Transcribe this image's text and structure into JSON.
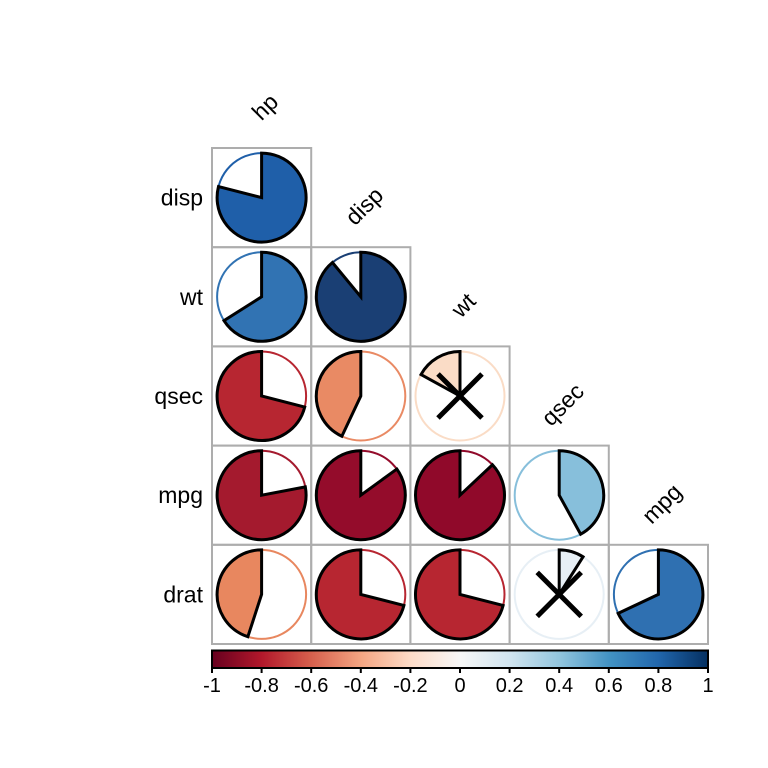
{
  "chart_data": {
    "type": "correlation-pie-matrix",
    "title": "",
    "column_labels": [
      "hp",
      "disp",
      "wt",
      "qsec",
      "mpg"
    ],
    "row_labels": [
      "disp",
      "wt",
      "qsec",
      "mpg",
      "drat"
    ],
    "note": "pies fill clockwise from 12 o'clock for positive r, counterclockwise for negative r; X marks non-significant correlations",
    "cells": [
      {
        "row": "disp",
        "col": "hp",
        "value": 0.79,
        "color": "#1F5FA9",
        "not_significant": false
      },
      {
        "row": "wt",
        "col": "hp",
        "value": 0.66,
        "color": "#3173B3",
        "not_significant": false
      },
      {
        "row": "wt",
        "col": "disp",
        "value": 0.89,
        "color": "#1A3F74",
        "not_significant": false
      },
      {
        "row": "qsec",
        "col": "hp",
        "value": -0.71,
        "color": "#B72631",
        "not_significant": false
      },
      {
        "row": "qsec",
        "col": "disp",
        "value": -0.43,
        "color": "#E98A64",
        "not_significant": false
      },
      {
        "row": "qsec",
        "col": "wt",
        "value": -0.17,
        "color": "#FADCC6",
        "not_significant": true
      },
      {
        "row": "mpg",
        "col": "hp",
        "value": -0.78,
        "color": "#A41A2E",
        "not_significant": false
      },
      {
        "row": "mpg",
        "col": "disp",
        "value": -0.85,
        "color": "#940C2B",
        "not_significant": false
      },
      {
        "row": "mpg",
        "col": "wt",
        "value": -0.87,
        "color": "#90092A",
        "not_significant": false
      },
      {
        "row": "mpg",
        "col": "qsec",
        "value": 0.42,
        "color": "#87BFDB",
        "not_significant": false
      },
      {
        "row": "drat",
        "col": "hp",
        "value": -0.45,
        "color": "#E8875F",
        "not_significant": false
      },
      {
        "row": "drat",
        "col": "disp",
        "value": -0.71,
        "color": "#B72631",
        "not_significant": false
      },
      {
        "row": "drat",
        "col": "wt",
        "value": -0.71,
        "color": "#B72631",
        "not_significant": false
      },
      {
        "row": "drat",
        "col": "qsec",
        "value": 0.09,
        "color": "#E7EFF5",
        "not_significant": true
      },
      {
        "row": "drat",
        "col": "mpg",
        "value": 0.68,
        "color": "#2F70B1",
        "not_significant": false
      }
    ],
    "colorbar": {
      "min": -1,
      "max": 1,
      "tick_labels": [
        "-1",
        "-0.8",
        "-0.6",
        "-0.4",
        "-0.2",
        "0",
        "0.2",
        "0.4",
        "0.6",
        "0.8",
        "1"
      ],
      "gradient_stops": [
        "#67001F",
        "#B2182B",
        "#D6604D",
        "#F4A582",
        "#FDDBC7",
        "#F7F7F7",
        "#D1E5F0",
        "#92C5DE",
        "#4393C3",
        "#2166AC",
        "#053061"
      ],
      "position": "bottom"
    },
    "grid": true,
    "legend_position": "bottom"
  },
  "colors": {
    "background": "#FFFFFF",
    "grid_line": "#ADADAD",
    "pie_outline": "#000000",
    "text": "#000000",
    "cross": "#000000"
  }
}
